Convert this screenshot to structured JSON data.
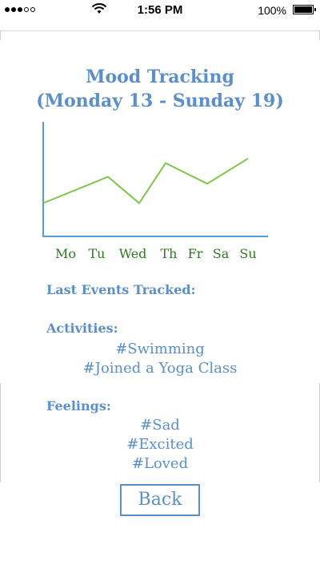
{
  "status_bar": {
    "time": "1:56 PM",
    "battery_percent": "100%",
    "signal_bars_filled": 3,
    "signal_bars_total": 5,
    "icons": [
      "signal-dots-icon",
      "wifi-icon",
      "battery-icon"
    ]
  },
  "title": {
    "line1": "Mood Tracking",
    "line2": "(Monday 13 - Sunday 19)"
  },
  "chart_data": {
    "type": "line",
    "title": "",
    "xlabel": "",
    "ylabel": "",
    "categories": [
      "Mo",
      "Tu",
      "Wed",
      "Th",
      "Fr",
      "Sa",
      "Su"
    ],
    "values": [
      2.9,
      5.2,
      2.9,
      6.4,
      4.6,
      6.8,
      6.8
    ],
    "line_values_note_free": true,
    "ylim": [
      0,
      10
    ],
    "grid": false,
    "line_color": "#7dc54a",
    "axis_color": "#5b9bd5"
  },
  "events": {
    "heading": "Last Events Tracked:",
    "activities_label": "Activities:",
    "activities": [
      "#Swimming",
      "#Joined a Yoga Class"
    ],
    "feelings_label": "Feelings:",
    "feelings": [
      "#Sad",
      "#Excited",
      "#Loved"
    ]
  },
  "back_label": "Back",
  "colors": {
    "accent": "#5b8fc9",
    "day_label": "#2f7a1f"
  }
}
